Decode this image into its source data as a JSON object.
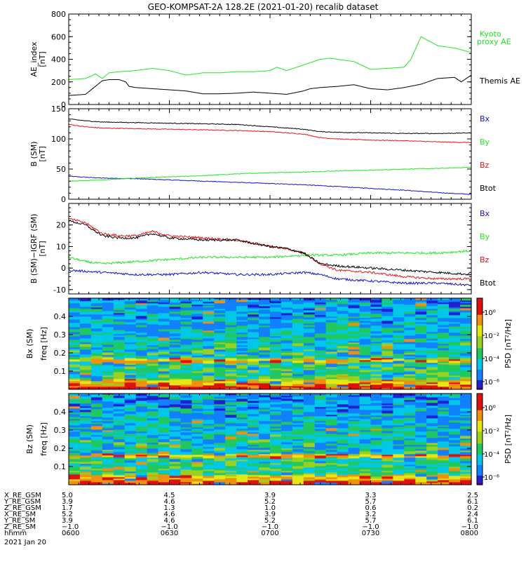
{
  "title": "GEO-KOMPSAT-2A 128.2E (2021-01-20) recalib dataset",
  "colors": {
    "black": "#000000",
    "red": "#e8141a",
    "green": "#22e622",
    "blue": "#1414c8"
  },
  "chart_data": [
    {
      "id": "ae",
      "type": "line",
      "ylabel": "AE_index",
      "yunit": "[nT]",
      "ylim": [
        0,
        800
      ],
      "yticks": [
        0,
        200,
        400,
        600,
        800
      ],
      "x_range_hhmm": [
        "0600",
        "0800"
      ],
      "series": [
        {
          "name": "Themis AE",
          "color": "#000000",
          "x": [
            0,
            5,
            10,
            12,
            15,
            17,
            18,
            20,
            25,
            30,
            35,
            40,
            45,
            50,
            55,
            60,
            65,
            70,
            72,
            75,
            80,
            85,
            90,
            95,
            100,
            105,
            110,
            115,
            117,
            120
          ],
          "values": [
            80,
            90,
            210,
            220,
            220,
            200,
            160,
            150,
            140,
            130,
            120,
            95,
            95,
            100,
            110,
            100,
            90,
            120,
            140,
            150,
            160,
            175,
            140,
            130,
            150,
            180,
            230,
            240,
            200,
            260
          ]
        },
        {
          "name": "Kyoto proxy AE",
          "color": "#22e622",
          "x": [
            0,
            5,
            8,
            10,
            12,
            15,
            20,
            25,
            30,
            35,
            40,
            45,
            50,
            55,
            60,
            62,
            65,
            70,
            75,
            78,
            80,
            85,
            90,
            95,
            100,
            102,
            105,
            110,
            115,
            120
          ],
          "values": [
            220,
            230,
            270,
            230,
            280,
            290,
            300,
            320,
            300,
            260,
            280,
            280,
            290,
            290,
            300,
            330,
            300,
            350,
            400,
            410,
            400,
            380,
            310,
            320,
            330,
            400,
            600,
            520,
            500,
            460
          ]
        }
      ],
      "labels": [
        "Kyoto",
        "proxy AE",
        "Themis AE"
      ]
    },
    {
      "id": "b",
      "type": "line",
      "ylabel": "B (SM)",
      "yunit": "[nT]",
      "ylim": [
        0,
        150
      ],
      "yticks": [
        0,
        50,
        100,
        150
      ],
      "series": [
        {
          "name": "Bx",
          "color": "#1414c8",
          "x": [
            0,
            10,
            20,
            30,
            40,
            50,
            60,
            70,
            80,
            90,
            100,
            110,
            120
          ],
          "values": [
            38,
            35,
            34,
            32,
            30,
            28,
            26,
            24,
            21,
            18,
            15,
            11,
            8
          ]
        },
        {
          "name": "By",
          "color": "#22e622",
          "x": [
            0,
            10,
            20,
            30,
            40,
            50,
            60,
            70,
            80,
            90,
            100,
            110,
            120
          ],
          "values": [
            30,
            32,
            35,
            37,
            39,
            42,
            44,
            45,
            47,
            48,
            50,
            51,
            53
          ]
        },
        {
          "name": "Bz",
          "color": "#e8141a",
          "x": [
            0,
            5,
            10,
            20,
            30,
            40,
            50,
            60,
            70,
            75,
            80,
            90,
            100,
            110,
            120
          ],
          "values": [
            124,
            120,
            118,
            117,
            116,
            115,
            114,
            112,
            108,
            102,
            100,
            98,
            97,
            95,
            94
          ]
        },
        {
          "name": "Btot",
          "color": "#000000",
          "x": [
            0,
            5,
            10,
            20,
            30,
            40,
            50,
            60,
            70,
            75,
            80,
            90,
            100,
            110,
            120
          ],
          "values": [
            133,
            130,
            128,
            127,
            126,
            125,
            124,
            120,
            116,
            112,
            111,
            110,
            109,
            109,
            110
          ]
        }
      ],
      "legend": [
        "Bx",
        "By",
        "Bz",
        "Btot"
      ]
    },
    {
      "id": "db",
      "type": "line",
      "ylabel": "B (SM)−IGRF (SM)",
      "yunit": "[nT]",
      "ylim": [
        -12,
        30
      ],
      "yticks": [
        -10,
        0,
        10,
        20
      ],
      "series": [
        {
          "name": "Bx",
          "color": "#1414c8",
          "x": [
            0,
            10,
            20,
            30,
            40,
            50,
            60,
            70,
            75,
            80,
            90,
            100,
            110,
            120
          ],
          "values": [
            -1,
            -2,
            -3,
            -3,
            -2,
            -3,
            -3,
            -2,
            -3,
            -5,
            -6,
            -7,
            -7,
            -8
          ]
        },
        {
          "name": "By",
          "color": "#22e622",
          "x": [
            0,
            5,
            10,
            20,
            30,
            40,
            50,
            60,
            70,
            75,
            80,
            90,
            100,
            110,
            120
          ],
          "values": [
            5,
            3,
            2,
            3,
            4,
            5,
            5,
            5,
            6,
            6,
            6,
            7,
            7,
            7,
            8
          ]
        },
        {
          "name": "Bz",
          "color": "#e8141a",
          "x": [
            0,
            5,
            10,
            15,
            20,
            25,
            30,
            40,
            50,
            60,
            65,
            70,
            75,
            80,
            90,
            100,
            110,
            120
          ],
          "values": [
            23,
            21,
            16,
            15,
            15,
            17,
            15,
            14,
            13,
            10,
            9,
            7,
            2,
            -1,
            -2,
            -4,
            -5,
            -5
          ]
        },
        {
          "name": "Btot",
          "color": "#000000",
          "x": [
            0,
            5,
            10,
            15,
            20,
            25,
            30,
            40,
            50,
            60,
            65,
            70,
            75,
            80,
            90,
            100,
            110,
            120
          ],
          "values": [
            22,
            20,
            15,
            14,
            14,
            16,
            14,
            13,
            13,
            10,
            9,
            7,
            2,
            1,
            0,
            -1,
            -2,
            -3
          ]
        }
      ],
      "legend": [
        "Bx",
        "By",
        "Bz",
        "Btot"
      ]
    },
    {
      "id": "bx_spec",
      "type": "heatmap",
      "ylabel": "Bx (SM)",
      "yunit": "freq [Hz]",
      "yticks": [
        0.1,
        0.2,
        0.3,
        0.4
      ],
      "colorbar_label": "PSD [nT²/Hz]",
      "colorbar_ticks": [
        "10⁰",
        "10⁻²",
        "10⁻⁴",
        "10⁻⁶"
      ]
    },
    {
      "id": "bz_spec",
      "type": "heatmap",
      "ylabel": "Bz (SM)",
      "yunit": "freq [Hz]",
      "yticks": [
        0.1,
        0.2,
        0.3,
        0.4
      ],
      "colorbar_label": "PSD [nT²/Hz]",
      "colorbar_ticks": [
        "10⁰",
        "10⁻²",
        "10⁻⁴",
        "10⁻⁶"
      ]
    }
  ],
  "ephemeris": {
    "rows": [
      {
        "label": "X_RE_GSM",
        "values": [
          "5.0",
          "4.5",
          "3.9",
          "3.3",
          "2.5"
        ]
      },
      {
        "label": "Y_RE_GSM",
        "values": [
          "3.9",
          "4.6",
          "5.2",
          "5.7",
          "6.1"
        ]
      },
      {
        "label": "Z_RE_GSM",
        "values": [
          "1.7",
          "1.3",
          "1.0",
          "0.6",
          "0.2"
        ]
      },
      {
        "label": "X_RE_SM",
        "values": [
          "5.2",
          "4.6",
          "3.9",
          "3.2",
          "2.4"
        ]
      },
      {
        "label": "Y_RE_SM",
        "values": [
          "3.9",
          "4.6",
          "5.2",
          "5.7",
          "6.1"
        ]
      },
      {
        "label": "Z_RE_SM",
        "values": [
          "−1.0",
          "−1.0",
          "−1.0",
          "−1.0",
          "−1.0"
        ]
      },
      {
        "label": "hhmm",
        "values": [
          "0600",
          "0630",
          "0700",
          "0730",
          "0800"
        ]
      }
    ],
    "date": "2021 Jan 20"
  }
}
